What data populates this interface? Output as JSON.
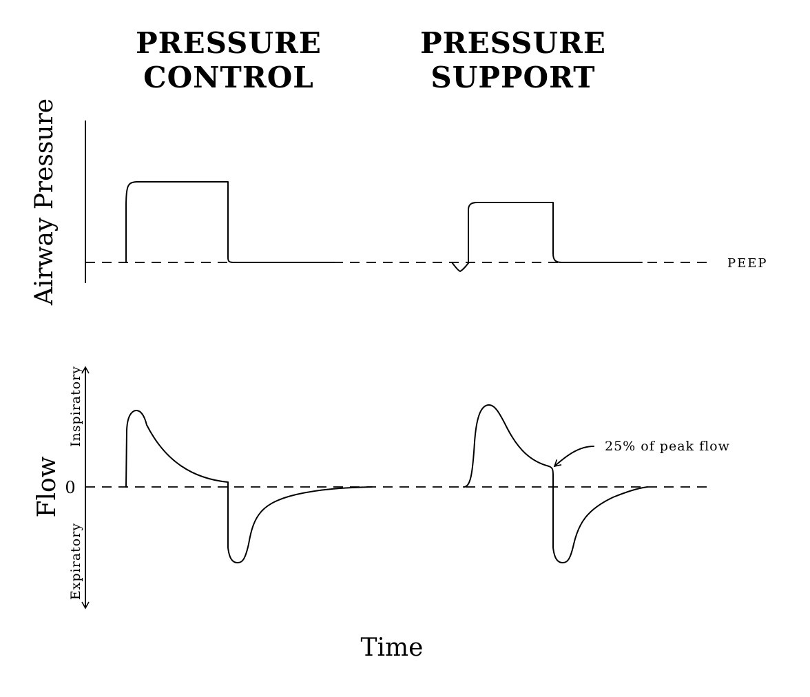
{
  "titles": {
    "pressure_control": [
      "PRESSURE",
      "CONTROL"
    ],
    "pressure_support": [
      "PRESSURE",
      "SUPPORT"
    ]
  },
  "pressure_panel": {
    "ylabel": "Airway Pressure",
    "baseline_label": "PEEP"
  },
  "flow_panel": {
    "ylabel": "Flow",
    "zero_label": "0",
    "up_label": "Inspiratory",
    "down_label": "Expiratory",
    "annotation": "25% of peak flow"
  },
  "xlabel": "Time"
}
